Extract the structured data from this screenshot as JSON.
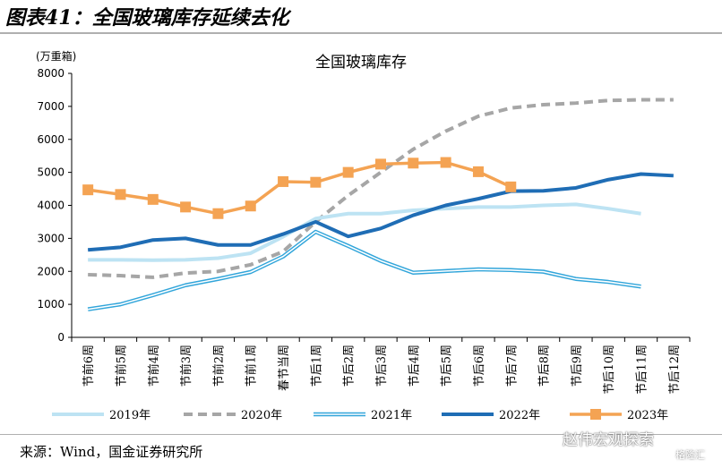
{
  "figure_title": "图表41：全国玻璃库存延续去化",
  "source": "来源：Wind，国金证券研究所",
  "watermark": "赵伟宏观探索",
  "watermark_sub": "格隆汇",
  "chart_data": {
    "type": "line",
    "title": "全国玻璃库存",
    "ylabel": "(万重箱)",
    "ylim": [
      0,
      8000
    ],
    "yticks": [
      0,
      1000,
      2000,
      3000,
      4000,
      5000,
      6000,
      7000,
      8000
    ],
    "categories": [
      "节前6周",
      "节前5周",
      "节前4周",
      "节前3周",
      "节前2周",
      "节前1周",
      "春节当周",
      "节后1周",
      "节后2周",
      "节后3周",
      "节后4周",
      "节后5周",
      "节后6周",
      "节后7周",
      "节后8周",
      "节后9周",
      "节后10周",
      "节后11周",
      "节后12周"
    ],
    "legend_position": "bottom",
    "series": [
      {
        "name": "2019年",
        "color": "#bde3f3",
        "style": "solid",
        "values": [
          2350,
          2350,
          2340,
          2350,
          2400,
          2550,
          3050,
          3600,
          3750,
          3750,
          3850,
          3900,
          3950,
          3950,
          4000,
          4030,
          3900,
          3750,
          null
        ]
      },
      {
        "name": "2020年",
        "color": "#a6a6a6",
        "style": "dashed",
        "values": [
          1900,
          1870,
          1820,
          1950,
          2000,
          2200,
          2600,
          3500,
          4300,
          5000,
          5700,
          6250,
          6700,
          6950,
          7050,
          7100,
          7180,
          7200,
          7200
        ]
      },
      {
        "name": "2021年",
        "color": "#31a5da",
        "style": "double",
        "values": [
          850,
          1000,
          1280,
          1580,
          1770,
          1980,
          2450,
          3200,
          2770,
          2320,
          1960,
          2010,
          2060,
          2040,
          1990,
          1770,
          1680,
          1540,
          null
        ]
      },
      {
        "name": "2022年",
        "color": "#1f6db5",
        "style": "thick",
        "values": [
          2650,
          2730,
          2950,
          3000,
          2800,
          2800,
          3130,
          3500,
          3060,
          3300,
          3700,
          4000,
          4200,
          4430,
          4440,
          4530,
          4780,
          4950,
          4900
        ]
      },
      {
        "name": "2023年",
        "color": "#f4a353",
        "style": "marker",
        "values": [
          4470,
          4330,
          4180,
          3950,
          3750,
          3980,
          4720,
          4700,
          5000,
          5250,
          5280,
          5300,
          5020,
          4560,
          null,
          null,
          null,
          null,
          null
        ]
      }
    ]
  }
}
